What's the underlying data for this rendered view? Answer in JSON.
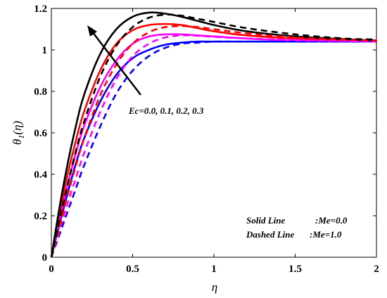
{
  "chart_data": {
    "type": "line",
    "xlabel": "η",
    "ylabel_main": "θ",
    "ylabel_sub": "1",
    "ylabel_tail": "(η)",
    "xlim": [
      0,
      2
    ],
    "ylim": [
      0,
      1.2
    ],
    "xticks": [
      0,
      0.5,
      1,
      1.5,
      2
    ],
    "xtick_labels": [
      "0",
      "0.5",
      "1",
      "1.5",
      "2"
    ],
    "yticks": [
      0,
      0.2,
      0.4,
      0.6,
      0.8,
      1,
      1.2
    ],
    "ytick_labels": [
      "0",
      "0.2",
      "0.4",
      "0.6",
      "0.8",
      "1",
      "1.2"
    ],
    "grid": false,
    "annotation_arrow_label": "Ec=0.0, 0.1, 0.2, 0.3",
    "legend_text": [
      {
        "key": "Solid Line",
        "value": ":Me=0.0"
      },
      {
        "key": "Dashed Line",
        "value": ":Me=1.0"
      }
    ],
    "series": [
      {
        "color": "#0000ff",
        "style": "solid",
        "x": [
          0,
          0.05,
          0.1,
          0.15,
          0.2,
          0.3,
          0.4,
          0.5,
          0.6,
          0.7,
          0.8,
          0.9,
          1.0,
          1.2,
          1.5,
          1.8,
          2.0
        ],
        "y": [
          0,
          0.16,
          0.31,
          0.45,
          0.57,
          0.75,
          0.88,
          0.96,
          1.0,
          1.025,
          1.035,
          1.04,
          1.04,
          1.04,
          1.04,
          1.04,
          1.04
        ]
      },
      {
        "color": "#ff00ff",
        "style": "solid",
        "x": [
          0,
          0.05,
          0.1,
          0.15,
          0.2,
          0.3,
          0.4,
          0.5,
          0.6,
          0.7,
          0.8,
          0.9,
          1.0,
          1.2,
          1.5,
          1.8,
          2.0
        ],
        "y": [
          0,
          0.18,
          0.35,
          0.5,
          0.63,
          0.82,
          0.95,
          1.03,
          1.065,
          1.075,
          1.075,
          1.07,
          1.065,
          1.055,
          1.045,
          1.042,
          1.04
        ]
      },
      {
        "color": "#ff0000",
        "style": "solid",
        "x": [
          0,
          0.05,
          0.1,
          0.15,
          0.2,
          0.3,
          0.4,
          0.5,
          0.6,
          0.7,
          0.8,
          0.9,
          1.0,
          1.2,
          1.5,
          1.8,
          2.0
        ],
        "y": [
          0,
          0.21,
          0.4,
          0.56,
          0.7,
          0.9,
          1.03,
          1.095,
          1.12,
          1.125,
          1.12,
          1.105,
          1.09,
          1.07,
          1.055,
          1.048,
          1.045
        ]
      },
      {
        "color": "#000000",
        "style": "solid",
        "x": [
          0,
          0.05,
          0.1,
          0.15,
          0.2,
          0.3,
          0.4,
          0.5,
          0.6,
          0.7,
          0.8,
          0.9,
          1.0,
          1.2,
          1.5,
          1.8,
          2.0
        ],
        "y": [
          0,
          0.24,
          0.45,
          0.63,
          0.78,
          0.98,
          1.1,
          1.16,
          1.18,
          1.175,
          1.16,
          1.14,
          1.12,
          1.09,
          1.065,
          1.052,
          1.045
        ]
      },
      {
        "color": "#0000ff",
        "style": "dashed",
        "x": [
          0,
          0.05,
          0.1,
          0.15,
          0.2,
          0.3,
          0.4,
          0.5,
          0.6,
          0.7,
          0.8,
          0.9,
          1.0,
          1.2,
          1.5,
          1.8,
          2.0
        ],
        "y": [
          0,
          0.11,
          0.22,
          0.33,
          0.44,
          0.63,
          0.79,
          0.9,
          0.97,
          1.01,
          1.03,
          1.035,
          1.04,
          1.04,
          1.04,
          1.04,
          1.04
        ]
      },
      {
        "color": "#ff00ff",
        "style": "dashed",
        "x": [
          0,
          0.05,
          0.1,
          0.15,
          0.2,
          0.3,
          0.4,
          0.5,
          0.6,
          0.7,
          0.8,
          0.9,
          1.0,
          1.2,
          1.5,
          1.8,
          2.0
        ],
        "y": [
          0,
          0.13,
          0.26,
          0.38,
          0.5,
          0.7,
          0.86,
          0.97,
          1.03,
          1.06,
          1.07,
          1.068,
          1.063,
          1.055,
          1.048,
          1.043,
          1.04
        ]
      },
      {
        "color": "#ff0000",
        "style": "dashed",
        "x": [
          0,
          0.05,
          0.1,
          0.15,
          0.2,
          0.3,
          0.4,
          0.5,
          0.6,
          0.7,
          0.8,
          0.9,
          1.0,
          1.2,
          1.5,
          1.8,
          2.0
        ],
        "y": [
          0,
          0.15,
          0.3,
          0.44,
          0.57,
          0.78,
          0.93,
          1.03,
          1.085,
          1.11,
          1.115,
          1.11,
          1.1,
          1.08,
          1.06,
          1.05,
          1.045
        ]
      },
      {
        "color": "#000000",
        "style": "dashed",
        "x": [
          0,
          0.05,
          0.1,
          0.15,
          0.2,
          0.3,
          0.4,
          0.5,
          0.6,
          0.7,
          0.8,
          0.9,
          1.0,
          1.2,
          1.5,
          1.8,
          2.0
        ],
        "y": [
          0,
          0.18,
          0.35,
          0.51,
          0.65,
          0.87,
          1.02,
          1.11,
          1.155,
          1.17,
          1.165,
          1.15,
          1.135,
          1.105,
          1.075,
          1.055,
          1.05
        ]
      }
    ]
  }
}
